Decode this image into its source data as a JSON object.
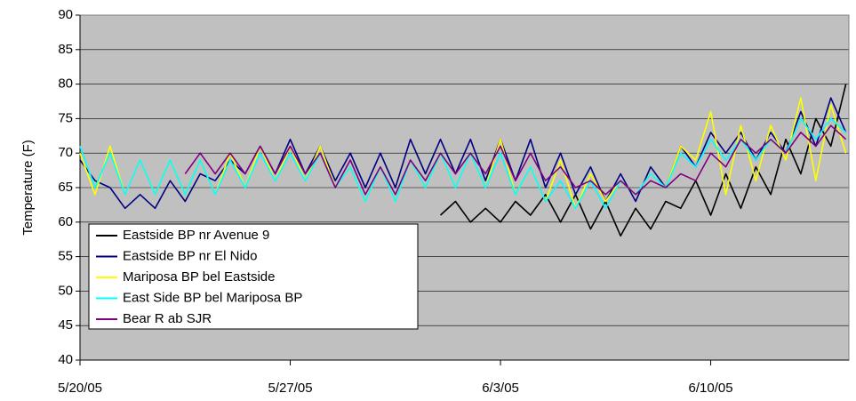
{
  "chart_data": {
    "type": "line",
    "ylabel": "Temperature (F)",
    "x": [
      0,
      0.5,
      1,
      1.5,
      2,
      2.5,
      3,
      3.5,
      4,
      4.5,
      5,
      5.5,
      6,
      6.5,
      7,
      7.5,
      8,
      8.5,
      9,
      9.5,
      10,
      10.5,
      11,
      11.5,
      12,
      12.5,
      13,
      13.5,
      14,
      14.5,
      15,
      15.5,
      16,
      16.5,
      17,
      17.5,
      18,
      18.5,
      19,
      19.5,
      20,
      20.5,
      21,
      21.5,
      22,
      22.5,
      23,
      23.5,
      24,
      24.5,
      25,
      25.5
    ],
    "xlim": [
      0,
      25.6
    ],
    "xticks": [
      {
        "value": 0,
        "label": "5/20/05"
      },
      {
        "value": 7,
        "label": "5/27/05"
      },
      {
        "value": 14,
        "label": "6/3/05"
      },
      {
        "value": 21,
        "label": "6/10/05"
      }
    ],
    "ylim": [
      40,
      90
    ],
    "yticks": [
      40,
      45,
      50,
      55,
      60,
      65,
      70,
      75,
      80,
      85,
      90
    ],
    "grid": true,
    "legend": "lower-left",
    "series": [
      {
        "name": "Eastside BP nr Avenue 9",
        "color": "#000000",
        "values": [
          null,
          null,
          null,
          null,
          null,
          null,
          null,
          null,
          null,
          null,
          null,
          null,
          null,
          null,
          null,
          null,
          null,
          null,
          null,
          null,
          null,
          null,
          null,
          null,
          61,
          63,
          60,
          62,
          60,
          63,
          61,
          64,
          60,
          64,
          59,
          63,
          58,
          62,
          59,
          63,
          62,
          66,
          61,
          67,
          62,
          68,
          64,
          72,
          67,
          75,
          71,
          80
        ]
      },
      {
        "name": "Eastside BP nr El Nido",
        "color": "#000080",
        "values": [
          69,
          66,
          65,
          62,
          64,
          62,
          66,
          63,
          67,
          66,
          69,
          67,
          71,
          67,
          72,
          67,
          71,
          66,
          70,
          65,
          70,
          65,
          72,
          67,
          72,
          67,
          72,
          66,
          72,
          66,
          72,
          65,
          70,
          64,
          68,
          63,
          67,
          63,
          68,
          65,
          71,
          68,
          73,
          70,
          73,
          69,
          73,
          70,
          76,
          71,
          78,
          73
        ]
      },
      {
        "name": "Mariposa BP bel Eastside",
        "color": "#ffff00",
        "values": [
          70,
          64,
          71,
          64,
          69,
          64,
          69,
          64,
          69,
          64,
          70,
          65,
          71,
          66,
          71,
          66,
          71,
          65,
          68,
          63,
          68,
          63,
          69,
          65,
          70,
          65,
          70,
          65,
          72,
          64,
          68,
          63,
          69,
          62,
          67,
          63,
          66,
          64,
          67,
          65,
          71,
          69,
          76,
          64,
          74,
          66,
          74,
          69,
          78,
          66,
          77,
          70
        ]
      },
      {
        "name": "East Side BP bel Mariposa BP",
        "color": "#00ffff",
        "values": [
          71,
          65,
          70,
          64,
          69,
          64,
          69,
          64,
          69,
          64,
          69,
          65,
          70,
          66,
          70,
          66,
          70,
          65,
          68,
          63,
          68,
          63,
          69,
          65,
          70,
          65,
          70,
          65,
          70,
          64,
          68,
          63,
          66,
          62,
          66,
          62,
          66,
          64,
          67,
          65,
          70,
          68,
          72,
          69,
          72,
          69,
          72,
          70,
          75,
          72,
          75,
          73
        ]
      },
      {
        "name": "Bear R ab SJR",
        "color": "#800080",
        "values": [
          null,
          null,
          null,
          null,
          null,
          null,
          null,
          67,
          70,
          67,
          70,
          67,
          71,
          67,
          71,
          67,
          70,
          65,
          69,
          64,
          68,
          64,
          69,
          66,
          70,
          67,
          70,
          67,
          71,
          66,
          70,
          66,
          68,
          65,
          66,
          64,
          66,
          64,
          66,
          65,
          67,
          66,
          70,
          68,
          72,
          70,
          72,
          70,
          73,
          71,
          74,
          72
        ]
      }
    ]
  }
}
